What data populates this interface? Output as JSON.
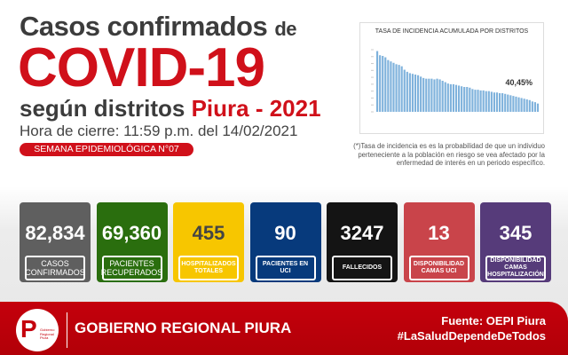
{
  "header": {
    "line1": "Casos confirmados",
    "line1_suffix": "de",
    "line2": "COVID-19",
    "line3_prefix": "según distritos",
    "line3_highlight": "Piura - 2021",
    "closing_time": "Hora de cierre: 11:59 p.m. del 14/02/2021",
    "week_badge": "SEMANA EPIDEMIOLÓGICA N°07"
  },
  "chart_data": {
    "type": "bar",
    "title": "TASA DE INCIDENCIA ACUMULADA POR DISTRITOS",
    "annotation": "40,45%",
    "values": [
      88,
      82,
      81,
      79,
      75,
      73,
      71,
      69,
      68,
      66,
      61,
      58,
      56,
      55,
      54,
      53,
      51,
      49,
      48,
      48,
      48,
      47,
      48,
      47,
      45,
      43,
      41,
      40,
      40,
      39,
      38,
      37,
      36,
      36,
      35,
      33,
      32,
      32,
      31,
      31,
      30,
      30,
      29,
      28,
      28,
      27,
      27,
      26,
      25,
      24,
      23,
      22,
      21,
      20,
      19,
      18,
      17,
      15,
      14,
      12
    ]
  },
  "footnote": "(*)Tasa de incidencia es es la probabilidad de que un individuo perteneciente a la población en riesgo se vea afectado por la enfermedad de interés en un periodo específico.",
  "cards": [
    {
      "value": "82,834",
      "label": "CASOS CONFIRMADOS",
      "color": "#5f5f5f"
    },
    {
      "value": "69,360",
      "label": "PACIENTES RECUPERADOS",
      "color": "#2a6e0e"
    },
    {
      "value": "455",
      "label": "HOSPITALIZADOS TOTALES",
      "color": "#f7c600"
    },
    {
      "value": "90",
      "label": "PACIENTES EN UCI",
      "color": "#073a7c"
    },
    {
      "value": "3247",
      "label": "FALLECIDOS",
      "color": "#141414"
    },
    {
      "value": "13",
      "label": "DISPONIBILIDAD CAMAS UCI",
      "color": "#c9444a"
    },
    {
      "value": "345",
      "label": "DISPONIBILIDAD CAMAS HOSPITALIZACIÓN",
      "color": "#563b7a"
    }
  ],
  "footer": {
    "logo_text": "Gobierno Regional Piura",
    "org": "GOBIERNO REGIONAL PIURA",
    "source": "Fuente: OEPI Piura",
    "hashtag": "#LaSaludDependeDeTodos"
  }
}
